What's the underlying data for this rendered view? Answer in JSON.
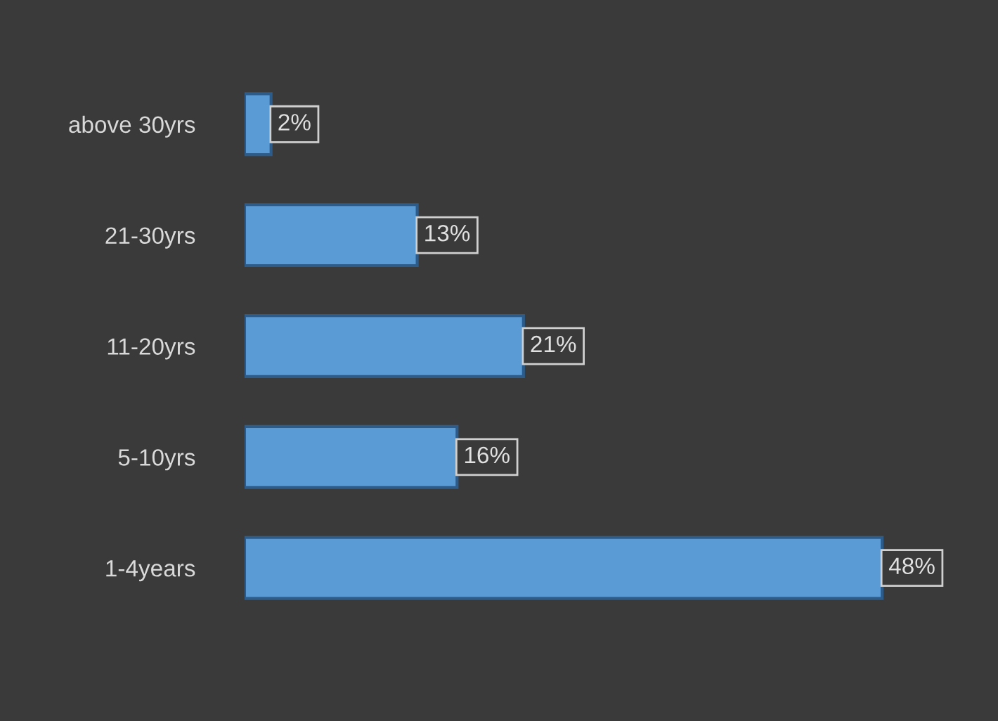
{
  "chart_data": {
    "type": "bar",
    "orientation": "horizontal",
    "categories": [
      "above 30yrs",
      "21-30yrs",
      "11-20yrs",
      "5-10yrs",
      "1-4years"
    ],
    "values": [
      2,
      13,
      21,
      16,
      48
    ],
    "value_labels": [
      "2%",
      "13%",
      "21%",
      "16%",
      "48%"
    ],
    "color": "#5b9bd5",
    "grid": false,
    "legend": false
  }
}
